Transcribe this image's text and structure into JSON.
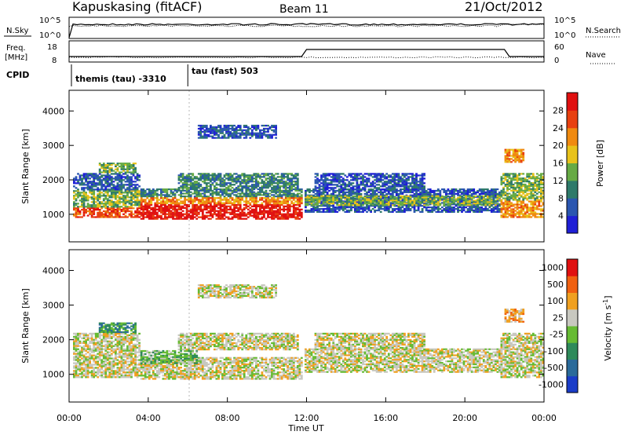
{
  "header": {
    "station": "Kapuskasing (fitACF)",
    "beam": "Beam 11",
    "date": "21/Oct/2012"
  },
  "noise_panel": {
    "left_label": "N.Sky",
    "right_label": "N.Search",
    "left_ticks": [
      "10^5",
      "10^0"
    ],
    "right_ticks": [
      "10^5",
      "10^0"
    ]
  },
  "freq_panel": {
    "left_label_1": "Freq.",
    "left_label_2": "[MHz]",
    "right_label": "Nave",
    "left_ticks": [
      "18",
      "8"
    ],
    "right_ticks": [
      "60",
      "0"
    ]
  },
  "cpid_panel": {
    "label": "CPID",
    "modes": [
      {
        "name": "themis (tau)  -3310",
        "start_hour": 0
      },
      {
        "name": "tau (fast) 503",
        "start_hour": 6
      }
    ]
  },
  "x_axis": {
    "label": "Time UT",
    "ticks": [
      "00:00",
      "04:00",
      "08:00",
      "12:00",
      "16:00",
      "20:00",
      "00:00"
    ],
    "tick_hours": [
      0,
      4,
      8,
      12,
      16,
      20,
      24
    ]
  },
  "chart_data": [
    {
      "type": "heatmap",
      "title": "Power",
      "xlabel": "Time UT",
      "ylabel": "Slant Range [km]",
      "xlim": [
        0,
        24
      ],
      "ylim": [
        200,
        4600
      ],
      "yticks": [
        "1000",
        "2000",
        "3000",
        "4000"
      ],
      "ytick_values": [
        1000,
        2000,
        3000,
        4000
      ],
      "colorbar": {
        "label": "Power [dB]",
        "ticks": [
          "4",
          "8",
          "12",
          "16",
          "20",
          "24",
          "28"
        ],
        "colors": [
          "#1f1fd6",
          "#2a56b0",
          "#2e7a6a",
          "#66aa44",
          "#e8c21a",
          "#f08a10",
          "#e84010",
          "#e01010"
        ]
      },
      "regions": [
        {
          "t0": 0.2,
          "t1": 3.6,
          "r0": 900,
          "r1": 1200,
          "level": 6
        },
        {
          "t0": 0.2,
          "t1": 3.6,
          "r0": 1200,
          "r1": 1700,
          "level": 3
        },
        {
          "t0": 0.2,
          "t1": 3.6,
          "r0": 1700,
          "r1": 2200,
          "level": 1
        },
        {
          "t0": 1.5,
          "t1": 3.4,
          "r0": 2200,
          "r1": 2500,
          "level": 3
        },
        {
          "t0": 3.6,
          "t1": 11.8,
          "r0": 850,
          "r1": 1300,
          "level": 7
        },
        {
          "t0": 3.6,
          "t1": 11.8,
          "r0": 1300,
          "r1": 1500,
          "level": 5
        },
        {
          "t0": 3.6,
          "t1": 11.8,
          "r0": 1500,
          "r1": 1750,
          "level": 2
        },
        {
          "t0": 5.5,
          "t1": 11.6,
          "r0": 1750,
          "r1": 2200,
          "level": 2
        },
        {
          "t0": 6.5,
          "t1": 10.5,
          "r0": 3200,
          "r1": 3600,
          "level": 1
        },
        {
          "t0": 11.9,
          "t1": 21.8,
          "r0": 1050,
          "r1": 1750,
          "level": 1
        },
        {
          "t0": 11.9,
          "t1": 21.8,
          "r0": 1250,
          "r1": 1550,
          "level": 3
        },
        {
          "t0": 12.4,
          "t1": 18.0,
          "r0": 1700,
          "r1": 2200,
          "level": 1
        },
        {
          "t0": 21.8,
          "t1": 24.0,
          "r0": 900,
          "r1": 1400,
          "level": 5
        },
        {
          "t0": 21.8,
          "t1": 24.0,
          "r0": 1400,
          "r1": 2200,
          "level": 3
        },
        {
          "t0": 22.0,
          "t1": 23.0,
          "r0": 2500,
          "r1": 2900,
          "level": 5
        }
      ]
    },
    {
      "type": "heatmap",
      "title": "Velocity",
      "xlabel": "Time UT",
      "ylabel": "Slant Range [km]",
      "xlim": [
        0,
        24
      ],
      "ylim": [
        200,
        4600
      ],
      "yticks": [
        "1000",
        "2000",
        "3000",
        "4000"
      ],
      "ytick_values": [
        1000,
        2000,
        3000,
        4000
      ],
      "colorbar": {
        "label": "Velocity [m s^-1]",
        "ticks": [
          "1000",
          "500",
          "100",
          "25",
          "-25",
          "-100",
          "-500",
          "-1000"
        ],
        "colors": [
          "#1a3cc8",
          "#2a6a9a",
          "#2e8a5a",
          "#66bb33",
          "#c8c8c0",
          "#f0a020",
          "#f06010",
          "#e01010"
        ]
      },
      "regions": [
        {
          "t0": 0.2,
          "t1": 3.6,
          "r0": 900,
          "r1": 2200,
          "level": 4
        },
        {
          "t0": 1.5,
          "t1": 3.4,
          "r0": 2200,
          "r1": 2500,
          "level": 2
        },
        {
          "t0": 3.6,
          "t1": 11.8,
          "r0": 850,
          "r1": 1500,
          "level": 4
        },
        {
          "t0": 3.6,
          "t1": 6.5,
          "r0": 1300,
          "r1": 1700,
          "level": 3
        },
        {
          "t0": 5.5,
          "t1": 11.6,
          "r0": 1700,
          "r1": 2200,
          "level": 4
        },
        {
          "t0": 6.5,
          "t1": 10.5,
          "r0": 3200,
          "r1": 3600,
          "level": 4
        },
        {
          "t0": 11.9,
          "t1": 21.8,
          "r0": 1050,
          "r1": 1750,
          "level": 4
        },
        {
          "t0": 12.4,
          "t1": 18.0,
          "r0": 1700,
          "r1": 2200,
          "level": 4
        },
        {
          "t0": 21.8,
          "t1": 24.0,
          "r0": 900,
          "r1": 2200,
          "level": 4
        },
        {
          "t0": 22.0,
          "t1": 23.0,
          "r0": 2500,
          "r1": 2900,
          "level": 5
        }
      ]
    }
  ]
}
